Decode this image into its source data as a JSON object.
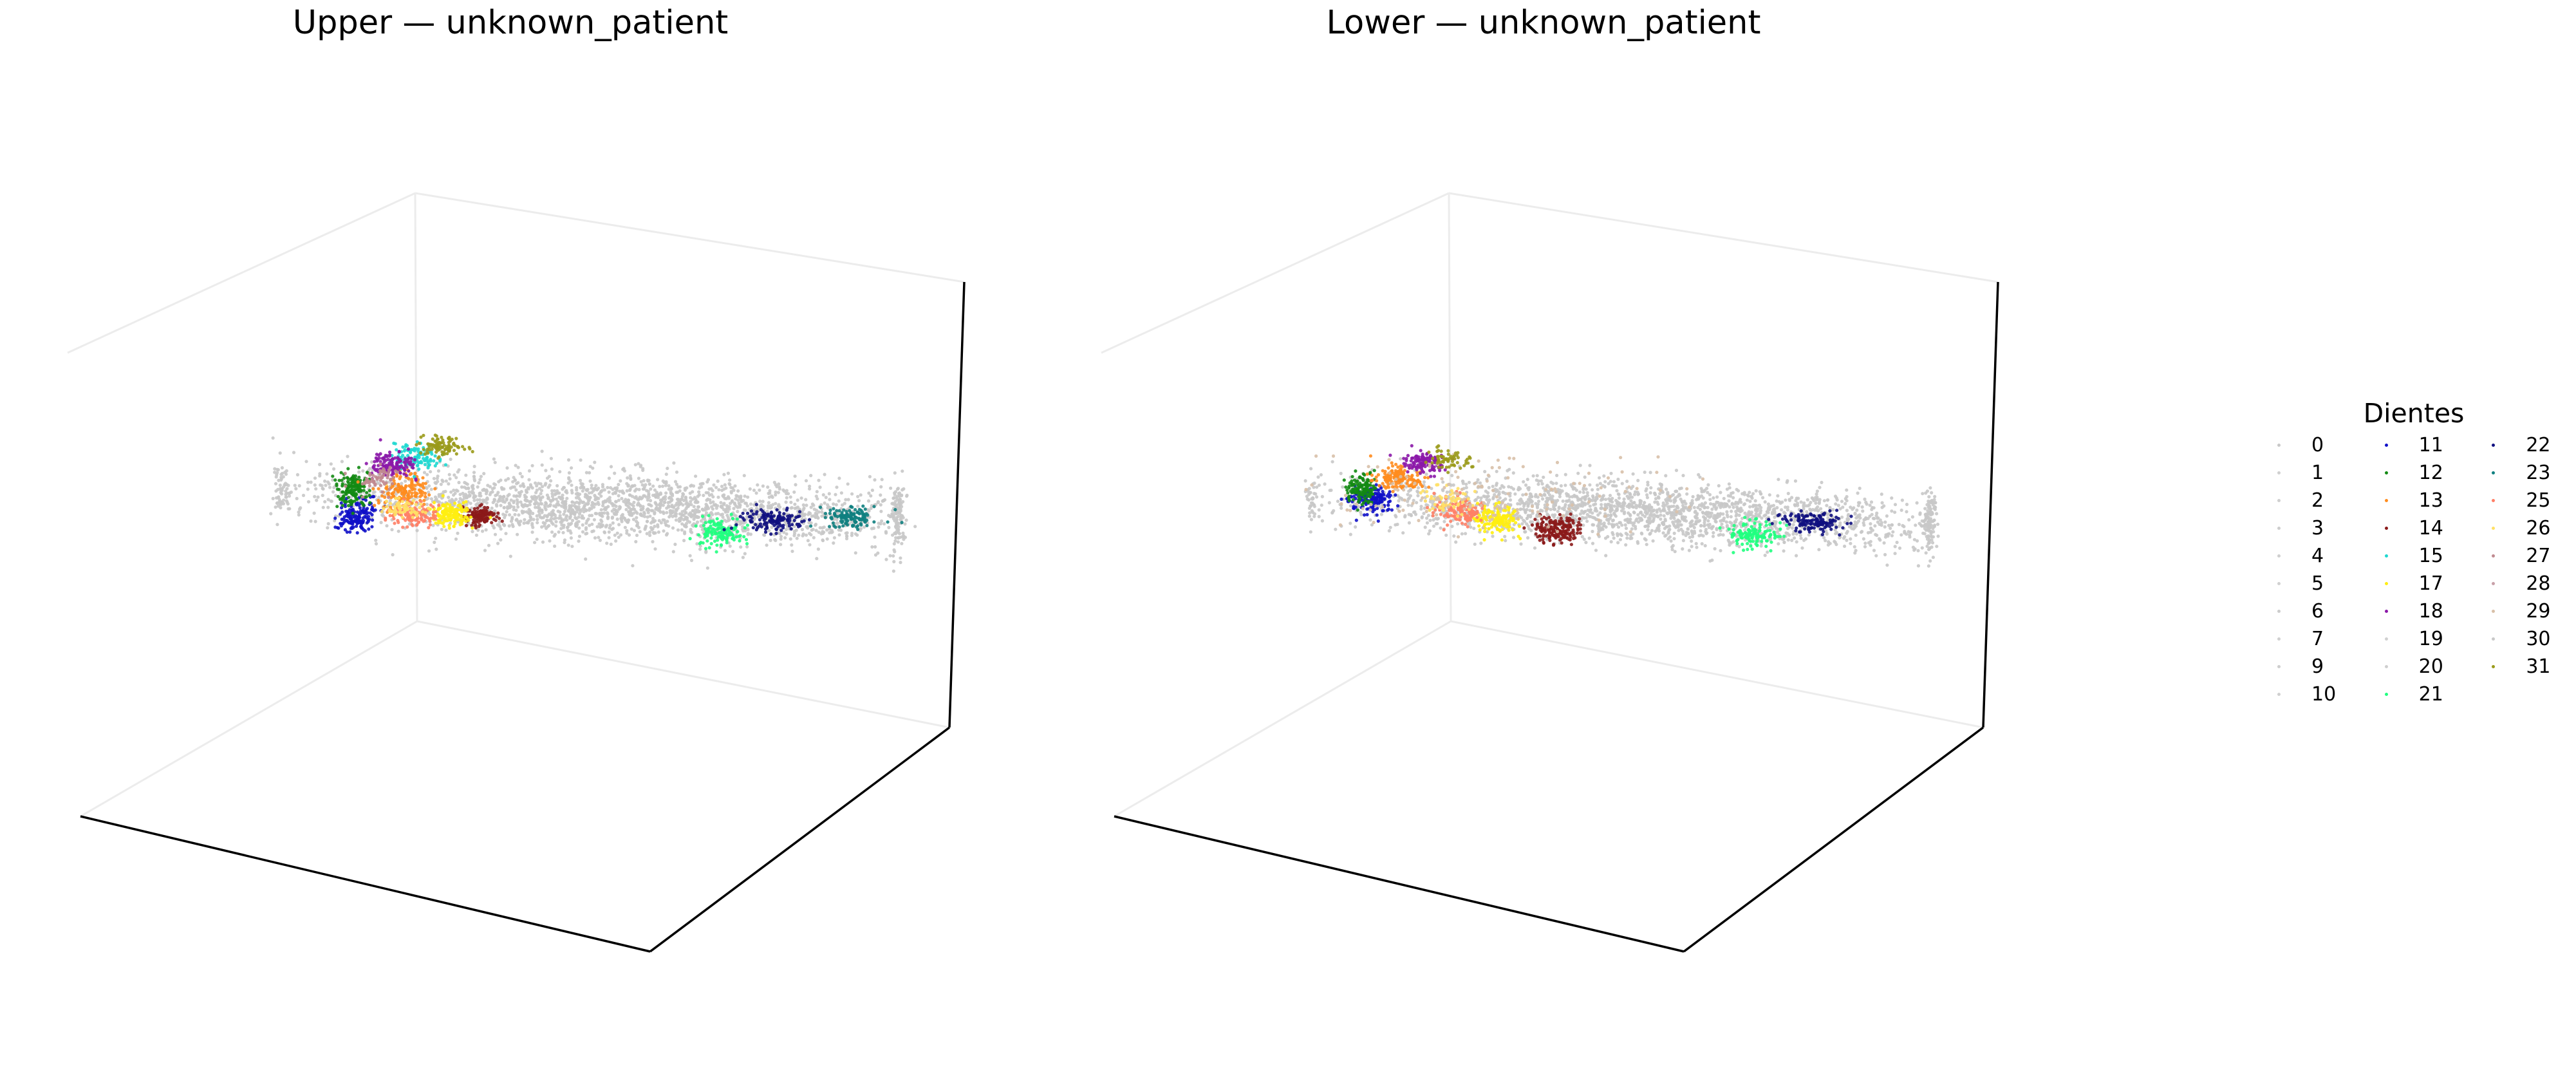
{
  "colors": {
    "background": "#ffffff",
    "unlabeled": "#c4c4c4",
    "pane_edge": "#ececec",
    "axis_line": "#000000"
  },
  "chart_data": [
    {
      "type": "scatter",
      "projection": "3d",
      "title": "Upper — unknown_patient",
      "grid": false,
      "axis_ticks": false,
      "series": [
        {
          "label": "0",
          "color": "#c8c8c8",
          "count": 2400,
          "center": [
            0.55,
            0.55,
            0.5
          ],
          "spread": [
            0.45,
            0.05,
            0.1
          ]
        },
        {
          "label": "11",
          "color": "#1010c8",
          "count": 160,
          "center": [
            0.13,
            0.51,
            0.4
          ],
          "spread": [
            0.02,
            0.07,
            0.05
          ]
        },
        {
          "label": "12",
          "color": "#138a13",
          "count": 150,
          "center": [
            0.12,
            0.53,
            0.55
          ],
          "spread": [
            0.02,
            0.06,
            0.05
          ]
        },
        {
          "label": "13",
          "color": "#ff8c1e",
          "count": 150,
          "center": [
            0.2,
            0.52,
            0.55
          ],
          "spread": [
            0.03,
            0.06,
            0.05
          ]
        },
        {
          "label": "14",
          "color": "#8b1a1a",
          "count": 130,
          "center": [
            0.33,
            0.51,
            0.43
          ],
          "spread": [
            0.02,
            0.04,
            0.03
          ]
        },
        {
          "label": "15",
          "color": "#1ed8d0",
          "count": 110,
          "center": [
            0.22,
            0.55,
            0.75
          ],
          "spread": [
            0.03,
            0.04,
            0.04
          ]
        },
        {
          "label": "17",
          "color": "#ffee11",
          "count": 150,
          "center": [
            0.28,
            0.5,
            0.43
          ],
          "spread": [
            0.03,
            0.04,
            0.03
          ]
        },
        {
          "label": "18",
          "color": "#8b18a8",
          "count": 140,
          "center": [
            0.18,
            0.55,
            0.7
          ],
          "spread": [
            0.03,
            0.04,
            0.04
          ]
        },
        {
          "label": "21",
          "color": "#20ff80",
          "count": 130,
          "center": [
            0.72,
            0.48,
            0.4
          ],
          "spread": [
            0.03,
            0.04,
            0.04
          ]
        },
        {
          "label": "22",
          "color": "#101080",
          "count": 130,
          "center": [
            0.8,
            0.53,
            0.47
          ],
          "spread": [
            0.04,
            0.04,
            0.03
          ]
        },
        {
          "label": "23",
          "color": "#108080",
          "count": 120,
          "center": [
            0.92,
            0.55,
            0.5
          ],
          "spread": [
            0.04,
            0.04,
            0.03
          ]
        },
        {
          "label": "25",
          "color": "#ff7f66",
          "count": 110,
          "center": [
            0.22,
            0.5,
            0.42
          ],
          "spread": [
            0.03,
            0.03,
            0.03
          ]
        },
        {
          "label": "26",
          "color": "#ffe066",
          "count": 60,
          "center": [
            0.2,
            0.51,
            0.45
          ],
          "spread": [
            0.03,
            0.03,
            0.03
          ]
        },
        {
          "label": "27",
          "color": "#c08a90",
          "count": 60,
          "center": [
            0.16,
            0.54,
            0.62
          ],
          "spread": [
            0.03,
            0.04,
            0.04
          ]
        },
        {
          "label": "31",
          "color": "#9a9a1a",
          "count": 90,
          "center": [
            0.26,
            0.55,
            0.82
          ],
          "spread": [
            0.03,
            0.03,
            0.03
          ]
        }
      ]
    },
    {
      "type": "scatter",
      "projection": "3d",
      "title": "Lower — unknown_patient",
      "grid": false,
      "axis_ticks": false,
      "series": [
        {
          "label": "0",
          "color": "#c8c8c8",
          "count": 2200,
          "center": [
            0.55,
            0.52,
            0.48
          ],
          "spread": [
            0.44,
            0.05,
            0.09
          ]
        },
        {
          "label": "11",
          "color": "#1010c8",
          "count": 160,
          "center": [
            0.1,
            0.5,
            0.5
          ],
          "spread": [
            0.03,
            0.03,
            0.04
          ]
        },
        {
          "label": "12",
          "color": "#138a13",
          "count": 120,
          "center": [
            0.08,
            0.52,
            0.55
          ],
          "spread": [
            0.02,
            0.03,
            0.04
          ]
        },
        {
          "label": "13",
          "color": "#ff8c1e",
          "count": 150,
          "center": [
            0.14,
            0.52,
            0.62
          ],
          "spread": [
            0.03,
            0.03,
            0.04
          ]
        },
        {
          "label": "14",
          "color": "#8b1a1a",
          "count": 180,
          "center": [
            0.4,
            0.5,
            0.36
          ],
          "spread": [
            0.03,
            0.03,
            0.04
          ]
        },
        {
          "label": "17",
          "color": "#ffee11",
          "count": 150,
          "center": [
            0.3,
            0.5,
            0.4
          ],
          "spread": [
            0.03,
            0.03,
            0.04
          ]
        },
        {
          "label": "18",
          "color": "#8b18a8",
          "count": 120,
          "center": [
            0.18,
            0.53,
            0.72
          ],
          "spread": [
            0.03,
            0.03,
            0.03
          ]
        },
        {
          "label": "21",
          "color": "#20ff80",
          "count": 130,
          "center": [
            0.72,
            0.48,
            0.38
          ],
          "spread": [
            0.03,
            0.04,
            0.04
          ]
        },
        {
          "label": "22",
          "color": "#101080",
          "count": 130,
          "center": [
            0.81,
            0.52,
            0.46
          ],
          "spread": [
            0.04,
            0.03,
            0.03
          ]
        },
        {
          "label": "25",
          "color": "#ff7f66",
          "count": 140,
          "center": [
            0.24,
            0.5,
            0.45
          ],
          "spread": [
            0.03,
            0.03,
            0.04
          ]
        },
        {
          "label": "26",
          "color": "#ffe066",
          "count": 60,
          "center": [
            0.22,
            0.51,
            0.5
          ],
          "spread": [
            0.03,
            0.03,
            0.04
          ]
        },
        {
          "label": "29",
          "color": "#d8c0a8",
          "count": 140,
          "center": [
            0.3,
            0.52,
            0.55
          ],
          "spread": [
            0.25,
            0.06,
            0.12
          ]
        },
        {
          "label": "31",
          "color": "#9a9a1a",
          "count": 60,
          "center": [
            0.22,
            0.54,
            0.75
          ],
          "spread": [
            0.03,
            0.03,
            0.03
          ]
        }
      ]
    }
  ],
  "legend": {
    "title": "Dientes",
    "placement": "right",
    "columns": [
      [
        {
          "label": "0",
          "color": "#c8c8c8"
        },
        {
          "label": "1",
          "color": "#d0d0d0"
        },
        {
          "label": "2",
          "color": "#cfcfcf"
        },
        {
          "label": "3",
          "color": "#cdcdcd"
        },
        {
          "label": "4",
          "color": "#cfcfcf"
        },
        {
          "label": "5",
          "color": "#d1d1d1"
        },
        {
          "label": "6",
          "color": "#cccccc"
        },
        {
          "label": "7",
          "color": "#d0d0d0"
        },
        {
          "label": "9",
          "color": "#cecece"
        },
        {
          "label": "10",
          "color": "#d0d0d0"
        }
      ],
      [
        {
          "label": "11",
          "color": "#1010c8"
        },
        {
          "label": "12",
          "color": "#138a13"
        },
        {
          "label": "13",
          "color": "#ff8c1e"
        },
        {
          "label": "14",
          "color": "#8b1a1a"
        },
        {
          "label": "15",
          "color": "#1ed8d0"
        },
        {
          "label": "17",
          "color": "#ffee11"
        },
        {
          "label": "18",
          "color": "#8b18a8"
        },
        {
          "label": "19",
          "color": "#d0d0d0"
        },
        {
          "label": "20",
          "color": "#cfcfcf"
        },
        {
          "label": "21",
          "color": "#20ff80"
        }
      ],
      [
        {
          "label": "22",
          "color": "#101080"
        },
        {
          "label": "23",
          "color": "#108080"
        },
        {
          "label": "25",
          "color": "#ff7f66"
        },
        {
          "label": "26",
          "color": "#ffe066"
        },
        {
          "label": "27",
          "color": "#c08a90"
        },
        {
          "label": "28",
          "color": "#c8a0a8"
        },
        {
          "label": "29",
          "color": "#d8c0a8"
        },
        {
          "label": "30",
          "color": "#c8c8c8"
        },
        {
          "label": "31",
          "color": "#9a9a1a"
        }
      ]
    ]
  }
}
